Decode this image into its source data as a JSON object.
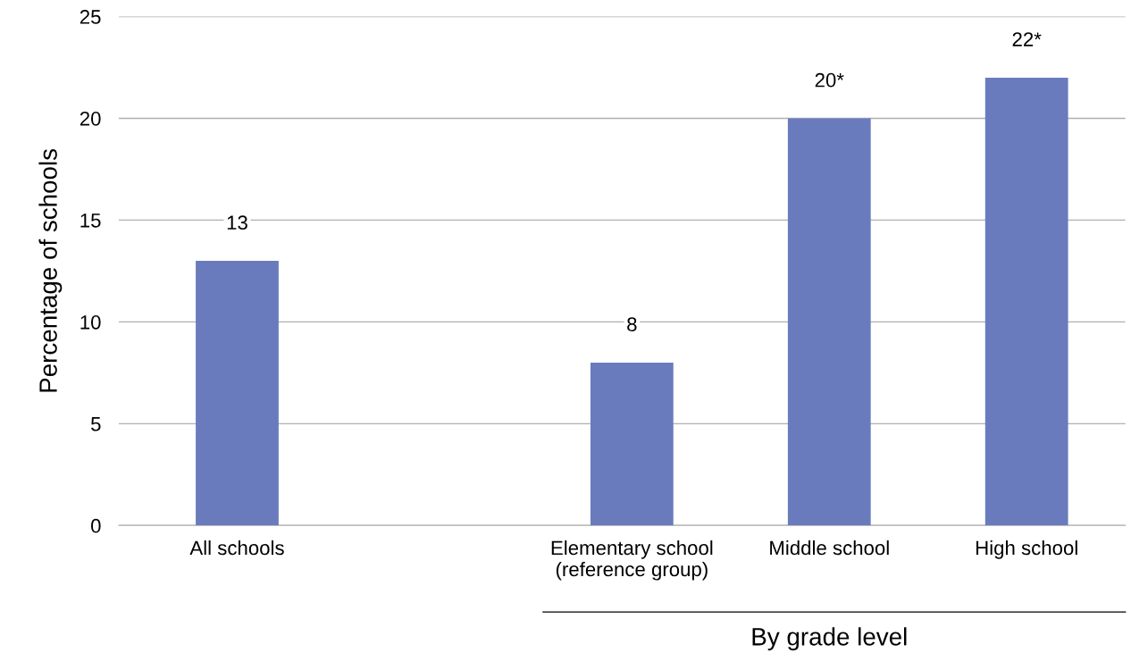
{
  "chart_data": {
    "type": "bar",
    "categories": [
      "All schools",
      null,
      "Elementary school\n(reference group)",
      "Middle school",
      "High school"
    ],
    "values": [
      13,
      null,
      8,
      20,
      22
    ],
    "value_labels": [
      "13",
      null,
      "8",
      "20*",
      "22*"
    ],
    "color": "#6a7bbd",
    "ylabel": "Percentage of schools",
    "ylim": [
      0,
      25
    ],
    "yticks": [
      0,
      5,
      10,
      15,
      20,
      25
    ],
    "grid": "y",
    "annotations": [
      "By grade level"
    ]
  }
}
